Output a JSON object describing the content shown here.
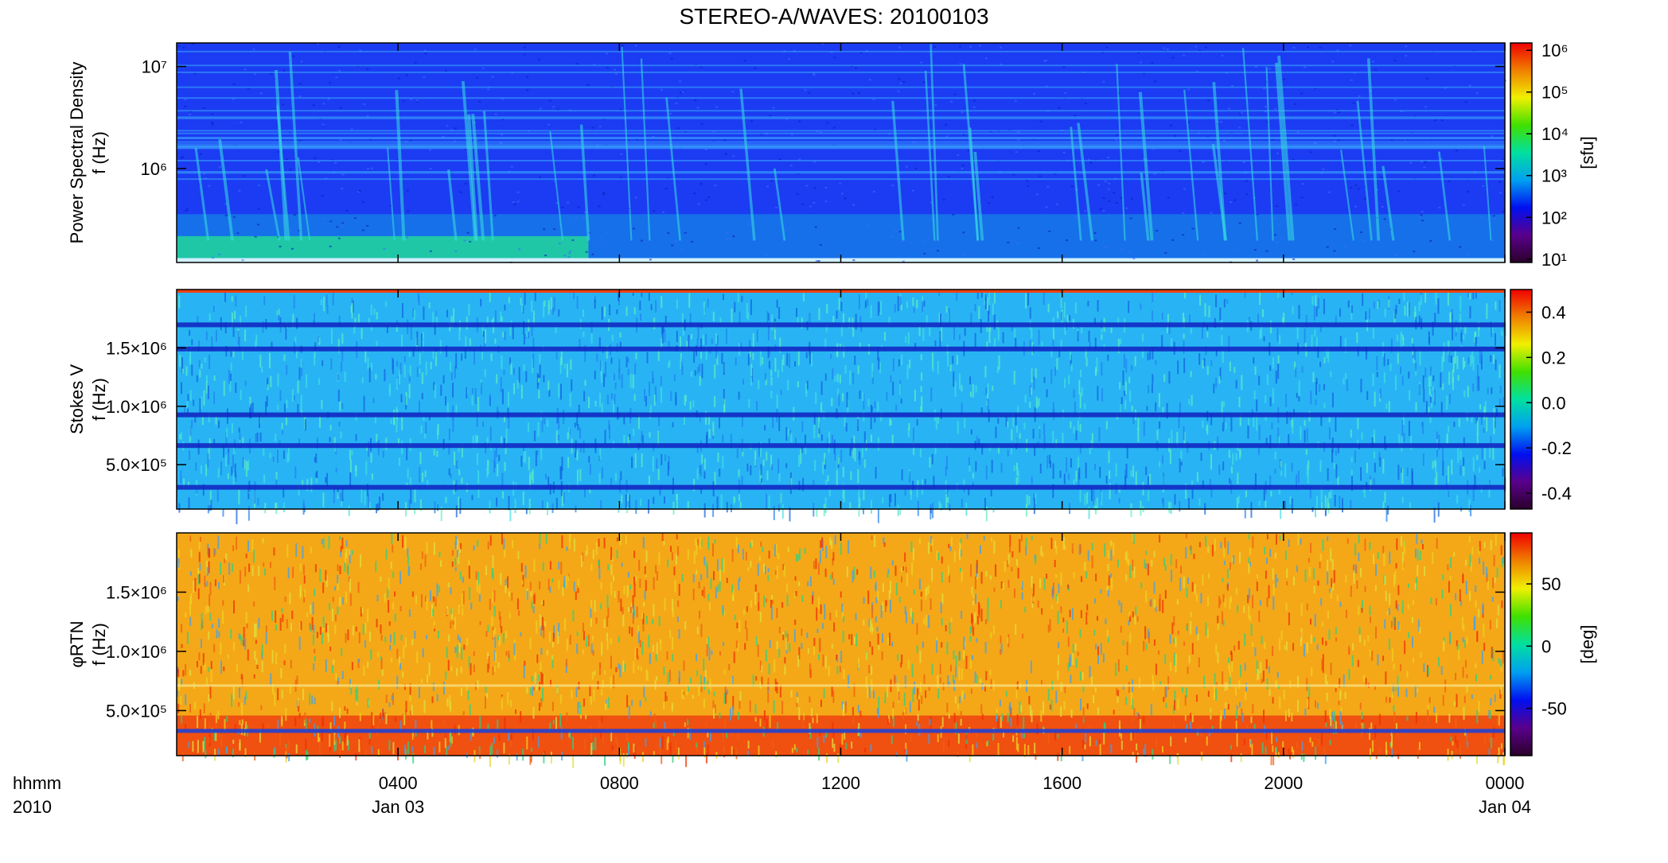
{
  "chart_data": {
    "type": "spectrogram",
    "title": "STEREO-A/WAVES: 20100103",
    "xlim": [
      0,
      24
    ],
    "xticks": [
      {
        "value": 4,
        "label": "0400"
      },
      {
        "value": 8,
        "label": "0800"
      },
      {
        "value": 12,
        "label": "1200"
      },
      {
        "value": 16,
        "label": "1600"
      },
      {
        "value": 20,
        "label": "2000"
      },
      {
        "value": 24,
        "label": "0000"
      }
    ],
    "x_dates": [
      {
        "value": 4,
        "label": "Jan 03"
      },
      {
        "value": 24,
        "label": "Jan 04"
      }
    ],
    "x_corner": [
      "hhmm",
      "2010"
    ],
    "colormap": [
      "#2a002a",
      "#5a008c",
      "#0010f0",
      "#00a0f0",
      "#00e0a0",
      "#40e000",
      "#f0f000",
      "#f08000",
      "#f00000"
    ],
    "panels": [
      {
        "ylabel": [
          "Power Spectral Density",
          "f (Hz)"
        ],
        "ylog": true,
        "ylim": [
          120000,
          17000000
        ],
        "yticks": [
          {
            "value": 1000000,
            "label": "10⁶"
          },
          {
            "value": 10000000,
            "label": "10⁷"
          }
        ],
        "clog": true,
        "clim": [
          8.3,
          1500000
        ],
        "cticks": [
          {
            "value": 10,
            "label": "10¹"
          },
          {
            "value": 100,
            "label": "10²"
          },
          {
            "value": 1000,
            "label": "10³"
          },
          {
            "value": 10000,
            "label": "10⁴"
          },
          {
            "value": 100000,
            "label": "10⁵"
          },
          {
            "value": 1000000,
            "label": "10⁶"
          }
        ],
        "clabel": "[sfu]"
      },
      {
        "ylabel": [
          "Stokes V",
          "f (Hz)"
        ],
        "ylog": false,
        "ylim": [
          120000,
          2000000
        ],
        "yticks": [
          {
            "value": 500000,
            "label": "5.0×10⁵"
          },
          {
            "value": 1000000,
            "label": "1.0×10⁶"
          },
          {
            "value": 1500000,
            "label": "1.5×10⁶"
          }
        ],
        "clog": false,
        "clim": [
          -0.47,
          0.5
        ],
        "cticks": [
          {
            "value": -0.4,
            "label": "-0.4"
          },
          {
            "value": -0.2,
            "label": "-0.2"
          },
          {
            "value": 0,
            "label": "0.0"
          },
          0.2,
          0.4
        ]
      },
      {
        "ylabel": [
          "φRTN",
          "f (Hz)"
        ],
        "ylog": false,
        "ylim": [
          120000,
          2000000
        ],
        "yticks": [
          {
            "value": 500000,
            "label": "5.0×10⁵"
          },
          {
            "value": 1000000,
            "label": "1.0×10⁶"
          },
          {
            "value": 1500000,
            "label": "1.5×10⁶"
          }
        ],
        "clog": false,
        "clim": [
          -88,
          91
        ],
        "cticks": [
          -50,
          0,
          50
        ],
        "clabel": "[deg]"
      }
    ]
  }
}
